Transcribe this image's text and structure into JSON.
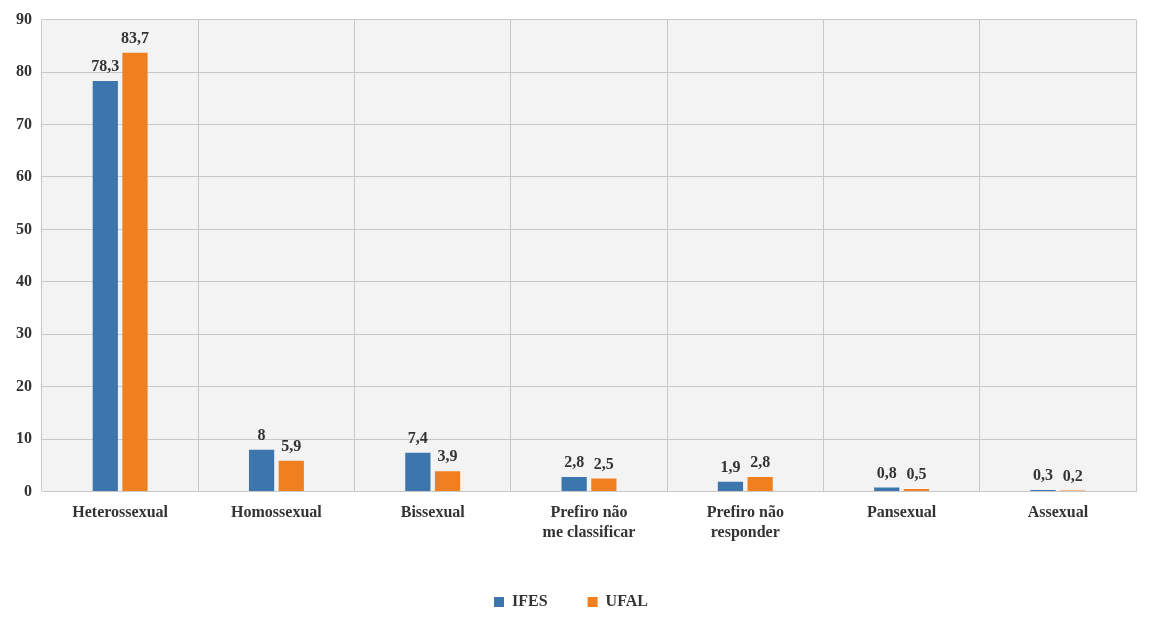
{
  "chart_data": {
    "type": "bar",
    "categories": [
      "Heterossexual",
      "Homossexual",
      "Bissexual",
      "Prefiro não me classificar",
      "Prefiro não responder",
      "Pansexual",
      "Assexual"
    ],
    "series": [
      {
        "name": "IFES",
        "color": "#3d76ad",
        "values": [
          78.3,
          8,
          7.4,
          2.8,
          1.9,
          0.8,
          0.3
        ],
        "value_labels": [
          "78,3",
          "8",
          "7,4",
          "2,8",
          "1,9",
          "0,8",
          "0,3"
        ]
      },
      {
        "name": "UFAL",
        "color": "#f0801f",
        "values": [
          83.7,
          5.9,
          3.9,
          2.5,
          2.8,
          0.5,
          0.2
        ],
        "value_labels": [
          "83,7",
          "5,9",
          "3,9",
          "2,5",
          "2,8",
          "0,5",
          "0,2"
        ]
      }
    ],
    "ylim": [
      0,
      90
    ],
    "yticks": [
      0,
      10,
      20,
      30,
      40,
      50,
      60,
      70,
      80,
      90
    ],
    "grid": true,
    "legend": "bottom"
  }
}
